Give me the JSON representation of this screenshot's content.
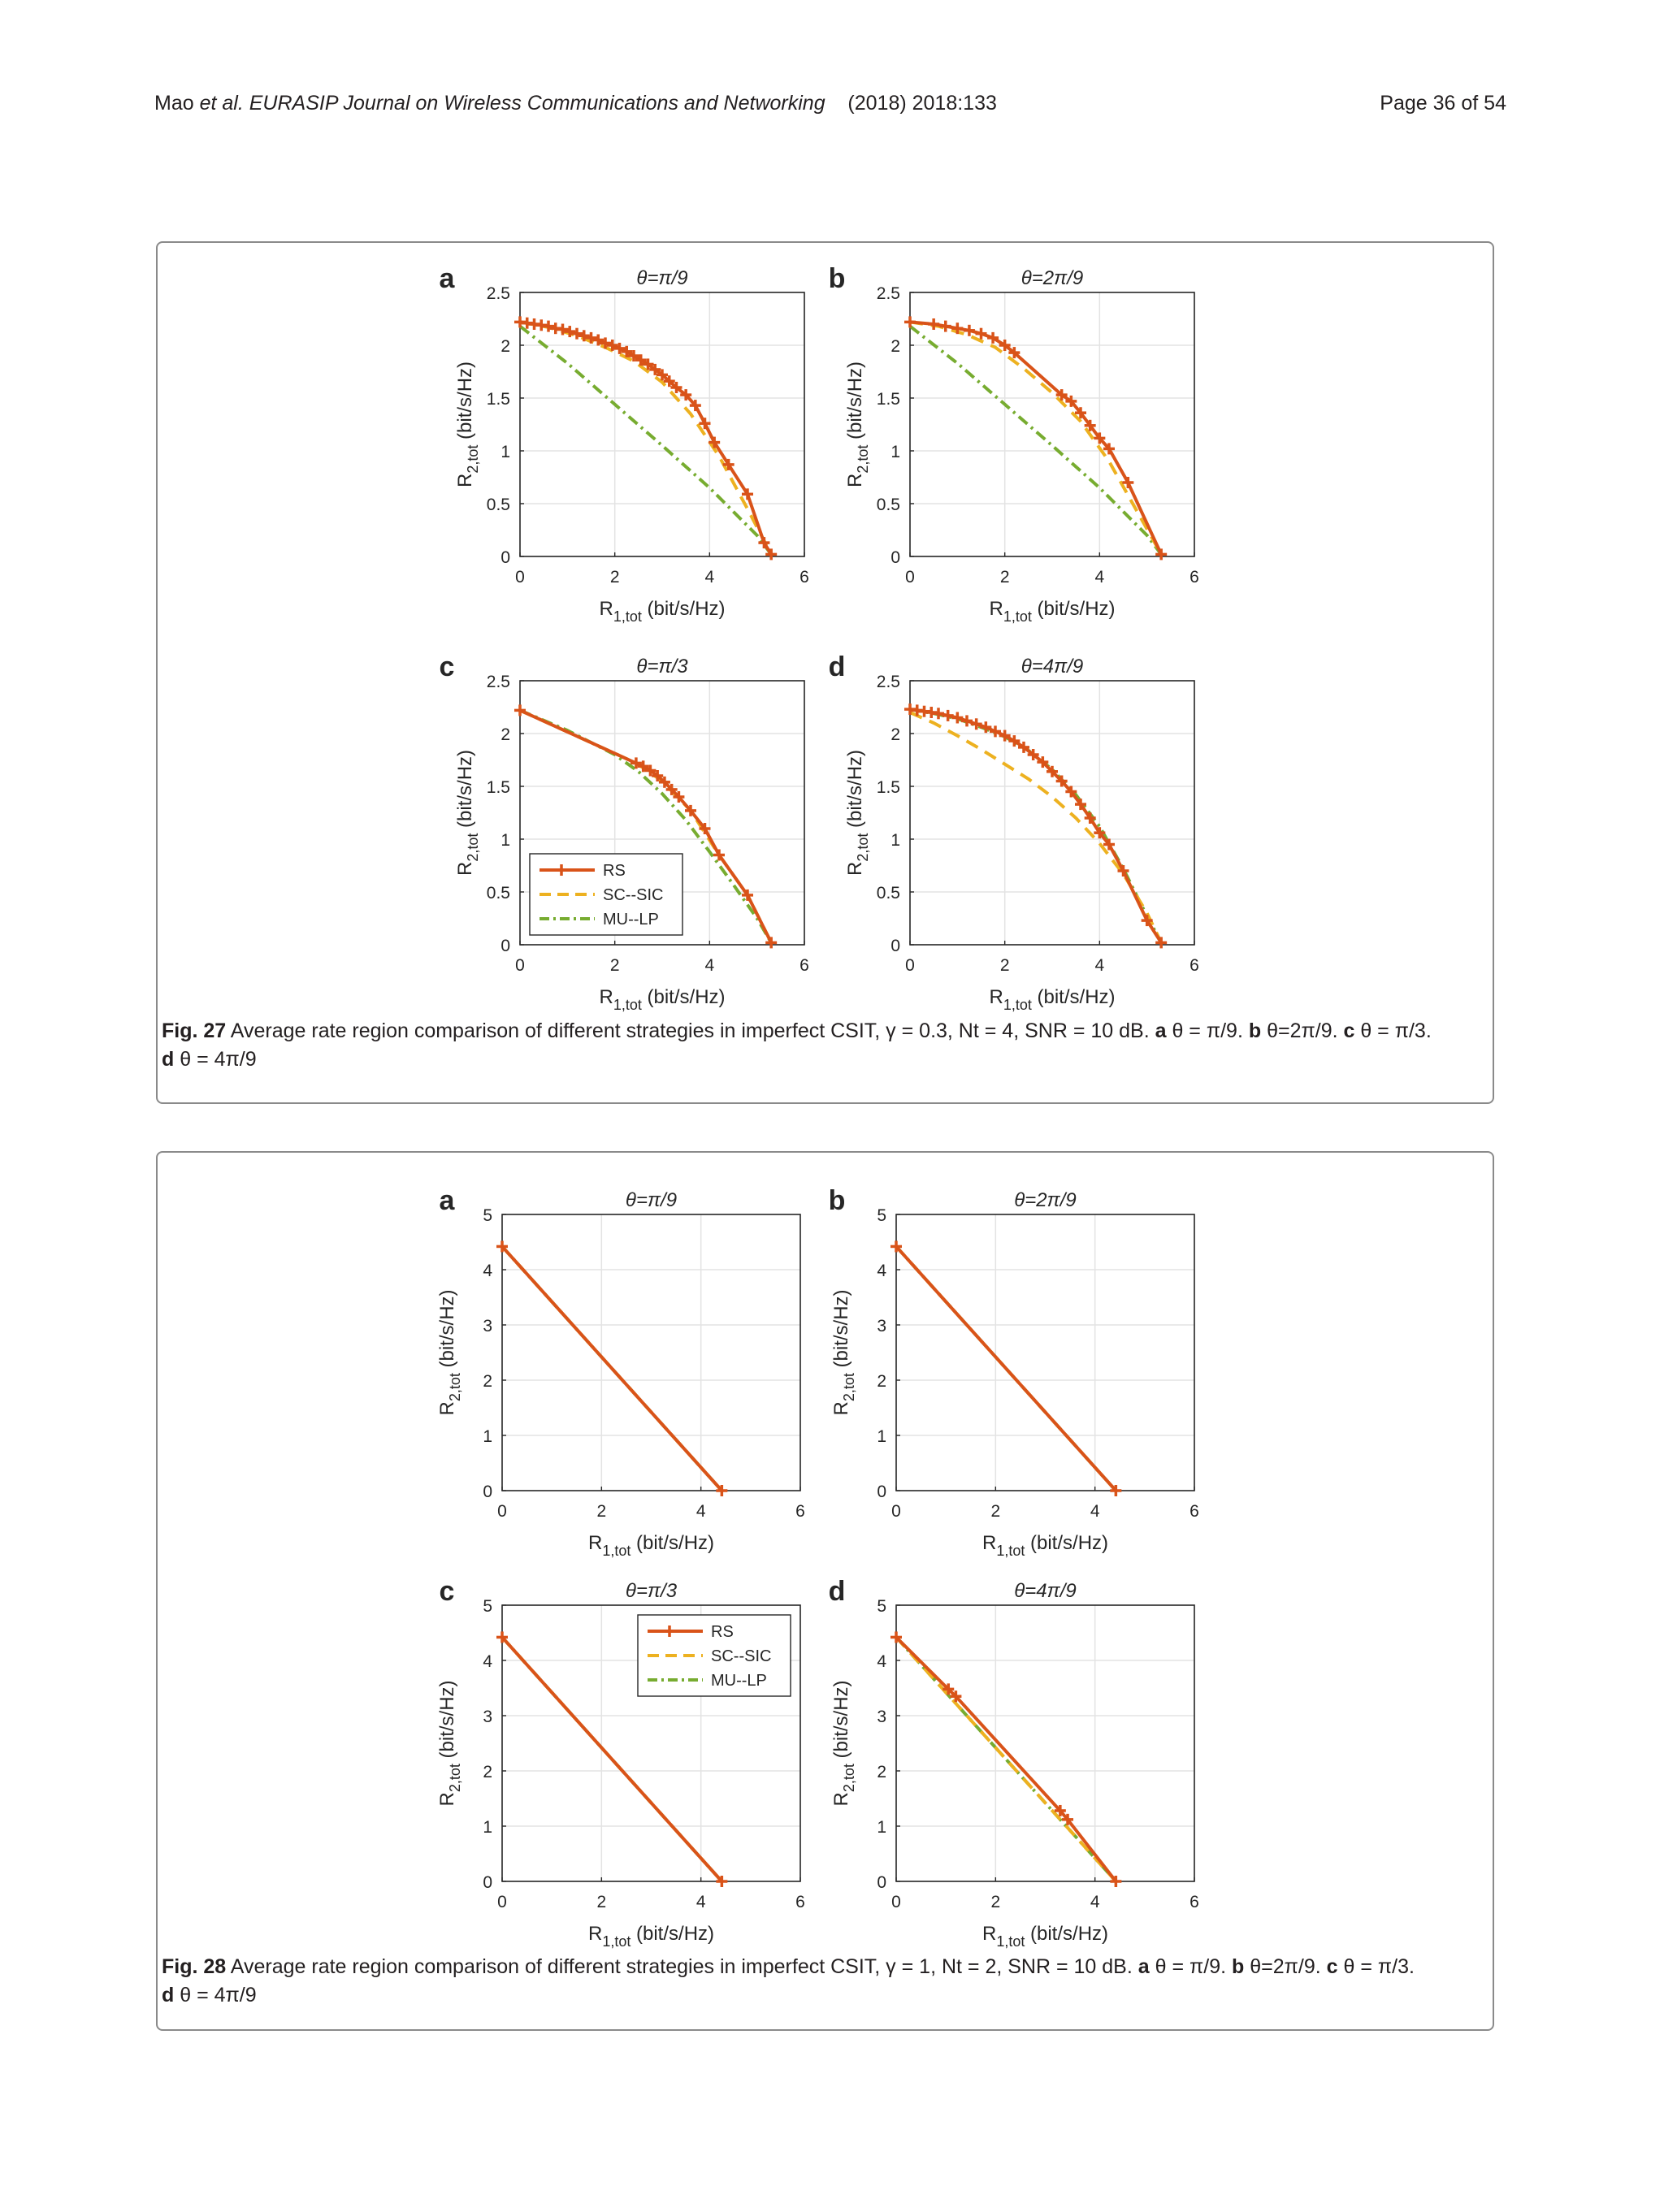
{
  "header": {
    "authors": "Mao",
    "journal_prefix": "et al. EURASIP Journal on Wireless Communications and Networking",
    "year_info": "(2018) 2018:133",
    "page": "Page 36 of 54"
  },
  "figures": [
    {
      "id": "fig27",
      "caption_label": "Fig. 27",
      "caption_text": "Average rate region comparison of different strategies in imperfect CSIT, γ = 0.3, Nt = 4, SNR = 10 dB. a θ = π/9. b θ=2π/9. c θ = π/3. d θ = 4π/9",
      "caption_line1": " Average rate region comparison of different strategies in imperfect CSIT, γ = 0.3, Nt = 4, SNR = 10 dB. ",
      "caption_parts": [
        "a",
        " θ = π/9. ",
        "b",
        " θ=2π/9. ",
        "c",
        " θ = π/3."
      ],
      "caption_line2_label": "d",
      "caption_line2_text": " θ = 4π/9"
    },
    {
      "id": "fig28",
      "caption_label": "Fig. 28",
      "caption_text": "Average rate region comparison of different strategies in imperfect CSIT, γ = 1, Nt = 2, SNR = 10 dB. a θ = π/9. b θ=2π/9. c θ = π/3. d θ = 4π/9",
      "caption_line1": " Average rate region comparison of different strategies in imperfect CSIT, γ = 1, Nt = 2, SNR = 10 dB. ",
      "caption_parts": [
        "a",
        " θ = π/9. ",
        "b",
        " θ=2π/9. ",
        "c",
        " θ = π/3."
      ],
      "caption_line2_label": "d",
      "caption_line2_text": " θ = 4π/9"
    }
  ],
  "colors": {
    "RS": "#d95319",
    "SC--SIC": "#edb120",
    "MU--LP": "#77ac30",
    "marker": "#d95319"
  },
  "chart_data": [
    {
      "type": "line",
      "panel": "a",
      "title": "θ=π/9",
      "xlabel": "R1,tot (bit/s/Hz)",
      "ylabel": "R2,tot (bit/s/Hz)",
      "xlim": [
        0,
        6
      ],
      "ylim": [
        0,
        2.5
      ],
      "xticks": [
        0,
        2,
        4,
        6
      ],
      "yticks": [
        0,
        0.5,
        1,
        1.5,
        2,
        2.5
      ],
      "grid": true,
      "series": [
        {
          "name": "RS",
          "x": [
            0,
            0.15,
            0.3,
            0.45,
            0.6,
            0.75,
            0.9,
            1.05,
            1.2,
            1.35,
            1.5,
            1.65,
            1.8,
            1.95,
            2.1,
            2.25,
            2.4,
            2.55,
            2.7,
            2.85,
            3.0,
            3.15,
            3.3,
            3.5,
            3.7,
            3.9,
            4.1,
            4.4,
            4.8,
            5.15,
            5.3
          ],
          "y": [
            2.22,
            2.21,
            2.2,
            2.19,
            2.18,
            2.16,
            2.15,
            2.13,
            2.11,
            2.09,
            2.07,
            2.05,
            2.02,
            2.0,
            1.97,
            1.94,
            1.9,
            1.86,
            1.82,
            1.77,
            1.72,
            1.66,
            1.6,
            1.53,
            1.43,
            1.26,
            1.08,
            0.87,
            0.59,
            0.13,
            0.02
          ]
        },
        {
          "name": "SC--SIC",
          "x": [
            0,
            0.6,
            1.2,
            1.8,
            2.4,
            3.0,
            3.6,
            4.2,
            4.8,
            5.3
          ],
          "y": [
            2.22,
            2.17,
            2.09,
            1.98,
            1.85,
            1.65,
            1.35,
            0.95,
            0.45,
            0.02
          ]
        },
        {
          "name": "MU--LP",
          "x": [
            0,
            1.0,
            2.0,
            3.0,
            4.0,
            5.0,
            5.3
          ],
          "y": [
            2.18,
            1.83,
            1.44,
            1.05,
            0.65,
            0.2,
            0.02
          ]
        }
      ]
    },
    {
      "type": "line",
      "panel": "b",
      "title": "θ=2π/9",
      "xlabel": "R1,tot (bit/s/Hz)",
      "ylabel": "R2,tot (bit/s/Hz)",
      "xlim": [
        0,
        6
      ],
      "ylim": [
        0,
        2.5
      ],
      "xticks": [
        0,
        2,
        4,
        6
      ],
      "yticks": [
        0,
        0.5,
        1,
        1.5,
        2,
        2.5
      ],
      "grid": true,
      "series": [
        {
          "name": "RS",
          "x": [
            0,
            0.5,
            0.75,
            1.0,
            1.25,
            1.5,
            1.75,
            2.0,
            2.2,
            3.2,
            3.4,
            3.6,
            3.8,
            4.0,
            4.2,
            4.6,
            5.3
          ],
          "y": [
            2.22,
            2.2,
            2.18,
            2.16,
            2.14,
            2.11,
            2.07,
            2.0,
            1.93,
            1.53,
            1.47,
            1.36,
            1.24,
            1.12,
            1.02,
            0.7,
            0.02
          ]
        },
        {
          "name": "SC--SIC",
          "x": [
            0,
            0.6,
            1.2,
            1.8,
            2.4,
            3.0,
            3.6,
            4.2,
            4.8,
            5.3
          ],
          "y": [
            2.22,
            2.18,
            2.1,
            1.98,
            1.78,
            1.55,
            1.28,
            0.9,
            0.42,
            0.02
          ]
        },
        {
          "name": "MU--LP",
          "x": [
            0,
            1.0,
            2.0,
            3.0,
            4.0,
            5.0,
            5.3
          ],
          "y": [
            2.18,
            1.83,
            1.44,
            1.05,
            0.65,
            0.2,
            0.02
          ]
        }
      ]
    },
    {
      "type": "line",
      "panel": "c",
      "title": "θ=π/3",
      "xlabel": "R1,tot (bit/s/Hz)",
      "ylabel": "R2,tot (bit/s/Hz)",
      "xlim": [
        0,
        6
      ],
      "ylim": [
        0,
        2.5
      ],
      "xticks": [
        0,
        2,
        4,
        6
      ],
      "yticks": [
        0,
        0.5,
        1,
        1.5,
        2,
        2.5
      ],
      "grid": true,
      "legend": {
        "entries": [
          "RS",
          "SC--SIC",
          "MU--LP"
        ],
        "location": "bottom-left"
      },
      "series": [
        {
          "name": "RS",
          "x": [
            0,
            2.45,
            2.6,
            2.75,
            2.9,
            3.05,
            3.2,
            3.35,
            3.6,
            3.9,
            4.2,
            4.8,
            5.3
          ],
          "y": [
            2.22,
            1.72,
            1.69,
            1.65,
            1.6,
            1.54,
            1.47,
            1.4,
            1.27,
            1.1,
            0.85,
            0.47,
            0.02
          ]
        },
        {
          "name": "SC--SIC",
          "x": [
            0,
            2.45,
            3.0,
            3.6,
            4.2,
            4.8,
            5.3
          ],
          "y": [
            2.22,
            1.72,
            1.55,
            1.27,
            0.85,
            0.47,
            0.02
          ]
        },
        {
          "name": "MU--LP",
          "x": [
            0,
            1.0,
            2.0,
            2.5,
            3.0,
            3.5,
            4.0,
            4.5,
            5.0,
            5.3
          ],
          "y": [
            2.22,
            2.03,
            1.8,
            1.64,
            1.43,
            1.18,
            0.88,
            0.57,
            0.25,
            0.02
          ]
        }
      ]
    },
    {
      "type": "line",
      "panel": "d",
      "title": "θ=4π/9",
      "xlabel": "R1,tot (bit/s/Hz)",
      "ylabel": "R2,tot (bit/s/Hz)",
      "xlim": [
        0,
        6
      ],
      "ylim": [
        0,
        2.5
      ],
      "xticks": [
        0,
        2,
        4,
        6
      ],
      "yticks": [
        0,
        0.5,
        1,
        1.5,
        2,
        2.5
      ],
      "grid": true,
      "series": [
        {
          "name": "RS",
          "x": [
            0,
            0.15,
            0.3,
            0.45,
            0.6,
            0.8,
            1.0,
            1.2,
            1.4,
            1.6,
            1.8,
            2.0,
            2.2,
            2.4,
            2.6,
            2.8,
            3.0,
            3.2,
            3.4,
            3.6,
            3.8,
            4.0,
            4.2,
            4.5,
            5.0,
            5.3
          ],
          "y": [
            2.23,
            2.22,
            2.21,
            2.2,
            2.19,
            2.17,
            2.15,
            2.12,
            2.09,
            2.06,
            2.02,
            1.98,
            1.93,
            1.87,
            1.8,
            1.73,
            1.64,
            1.55,
            1.45,
            1.33,
            1.2,
            1.06,
            0.95,
            0.7,
            0.23,
            0.02
          ]
        },
        {
          "name": "SC--SIC",
          "x": [
            0,
            0.5,
            1.0,
            1.5,
            2.0,
            2.5,
            3.0,
            3.5,
            4.0,
            4.5,
            5.0,
            5.3
          ],
          "y": [
            2.2,
            2.1,
            1.98,
            1.85,
            1.71,
            1.57,
            1.4,
            1.2,
            0.96,
            0.67,
            0.3,
            0.02
          ]
        },
        {
          "name": "MU--LP",
          "x": [
            0,
            0.5,
            1.0,
            1.5,
            2.0,
            2.5,
            3.0,
            3.5,
            4.0,
            4.5,
            5.0,
            5.3
          ],
          "y": [
            2.23,
            2.19,
            2.14,
            2.06,
            1.97,
            1.84,
            1.66,
            1.42,
            1.12,
            0.72,
            0.27,
            0.02
          ]
        }
      ]
    },
    {
      "type": "line",
      "panel": "a",
      "title": "θ=π/9",
      "xlabel": "R1,tot (bit/s/Hz)",
      "ylabel": "R2,tot (bit/s/Hz)",
      "xlim": [
        0,
        6
      ],
      "ylim": [
        0,
        5
      ],
      "xticks": [
        0,
        2,
        4,
        6
      ],
      "yticks": [
        0,
        1,
        2,
        3,
        4,
        5
      ],
      "grid": true,
      "series": [
        {
          "name": "RS",
          "x": [
            0,
            4.42
          ],
          "y": [
            4.42,
            0
          ]
        },
        {
          "name": "SC--SIC",
          "x": [
            0,
            4.42
          ],
          "y": [
            4.42,
            0
          ]
        },
        {
          "name": "MU--LP",
          "x": [
            0,
            4.42
          ],
          "y": [
            4.42,
            0
          ]
        }
      ]
    },
    {
      "type": "line",
      "panel": "b",
      "title": "θ=2π/9",
      "xlabel": "R1,tot (bit/s/Hz)",
      "ylabel": "R2,tot (bit/s/Hz)",
      "xlim": [
        0,
        6
      ],
      "ylim": [
        0,
        5
      ],
      "xticks": [
        0,
        2,
        4,
        6
      ],
      "yticks": [
        0,
        1,
        2,
        3,
        4,
        5
      ],
      "grid": true,
      "series": [
        {
          "name": "RS",
          "x": [
            0,
            4.42
          ],
          "y": [
            4.42,
            0
          ]
        },
        {
          "name": "SC--SIC",
          "x": [
            0,
            4.42
          ],
          "y": [
            4.42,
            0
          ]
        },
        {
          "name": "MU--LP",
          "x": [
            0,
            4.42
          ],
          "y": [
            4.42,
            0
          ]
        }
      ]
    },
    {
      "type": "line",
      "panel": "c",
      "title": "θ=π/3",
      "xlabel": "R1,tot (bit/s/Hz)",
      "ylabel": "R2,tot (bit/s/Hz)",
      "xlim": [
        0,
        6
      ],
      "ylim": [
        0,
        5
      ],
      "xticks": [
        0,
        2,
        4,
        6
      ],
      "yticks": [
        0,
        1,
        2,
        3,
        4,
        5
      ],
      "grid": true,
      "legend": {
        "entries": [
          "RS",
          "SC--SIC",
          "MU--LP"
        ],
        "location": "top-right"
      },
      "series": [
        {
          "name": "RS",
          "x": [
            0,
            4.42
          ],
          "y": [
            4.42,
            0
          ]
        },
        {
          "name": "SC--SIC",
          "x": [
            0,
            4.42
          ],
          "y": [
            4.42,
            0
          ]
        },
        {
          "name": "MU--LP",
          "x": [
            0,
            4.42
          ],
          "y": [
            4.42,
            0
          ]
        }
      ]
    },
    {
      "type": "line",
      "panel": "d",
      "title": "θ=4π/9",
      "xlabel": "R1,tot (bit/s/Hz)",
      "ylabel": "R2,tot (bit/s/Hz)",
      "xlim": [
        0,
        6
      ],
      "ylim": [
        0,
        5
      ],
      "xticks": [
        0,
        2,
        4,
        6
      ],
      "yticks": [
        0,
        1,
        2,
        3,
        4,
        5
      ],
      "grid": true,
      "series": [
        {
          "name": "RS",
          "x": [
            0,
            1.05,
            1.2,
            3.3,
            3.45,
            4.42
          ],
          "y": [
            4.42,
            3.48,
            3.35,
            1.28,
            1.12,
            0
          ]
        },
        {
          "name": "SC--SIC",
          "x": [
            0,
            4.42
          ],
          "y": [
            4.42,
            0
          ]
        },
        {
          "name": "MU--LP",
          "x": [
            0,
            4.42
          ],
          "y": [
            4.42,
            0
          ]
        }
      ]
    }
  ]
}
